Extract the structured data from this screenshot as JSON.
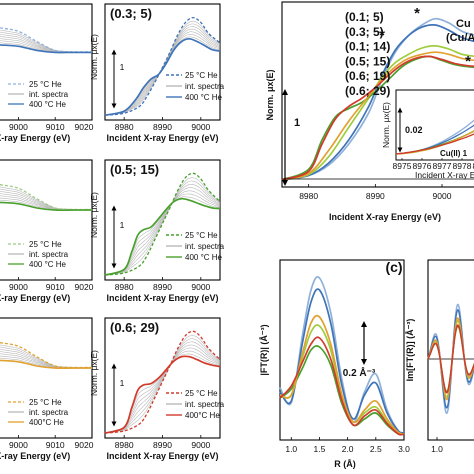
{
  "figure": {
    "colors": {
      "blue": "#3f74b8",
      "blue_light": "#8fb0da",
      "green": "#49a12d",
      "green_light": "#9ccc85",
      "orange": "#e1a12f",
      "red": "#d23a2c",
      "gray": "#b8b8b8",
      "lightgreen": "#9fcd3f",
      "darkblue": "#2f3f7d"
    },
    "common": {
      "x_axis_label": "Incident X-ray Energy (eV)",
      "x_axis_label_partial": "t X-ray Energy (eV)",
      "y_axis_label": "Norm. μx(E)",
      "scale_bar": "1",
      "legend": [
        "25 °C He",
        "int. spectra",
        "400 °C He"
      ],
      "legend_red": [
        "25 °C He",
        "int. spectra",
        "400°C He"
      ]
    },
    "small_panels": {
      "left_ticks": [
        "9000",
        "9010",
        "9020"
      ],
      "zoom_ticks": [
        "8980",
        "8990",
        "9000"
      ],
      "panels": [
        {
          "condition": "(0.3; 5)",
          "color_key": "blue"
        },
        {
          "condition": "(0.5; 15)",
          "color_key": "green"
        },
        {
          "condition": "(0.6; 29)",
          "color_key": "red"
        }
      ],
      "left_orange_legend": [
        "25 °C He",
        "int. spectra",
        "400°C He"
      ]
    },
    "main_panel": {
      "legend": [
        "(0.1; 5)",
        "(0.3; 5)",
        "(0.1; 14)",
        "(0.5; 15)",
        "(0.6; 19)",
        "(0.6; 29)"
      ],
      "legend_colors": [
        "#8fb0da",
        "#3f74b8",
        "#9fcd3f",
        "#49a12d",
        "#e1a12f",
        "#d23a2c"
      ],
      "title_partial": [
        "Cu",
        "(Cu/A"
      ],
      "x_ticks": [
        "8980",
        "8990",
        "9000"
      ],
      "star": "*",
      "inset": {
        "scale": "0.02",
        "label": "Cu(II) 1",
        "x_ticks": [
          "8975",
          "8976",
          "8977",
          "8978",
          "8979"
        ],
        "x_axis_label": "Incident X-ray En",
        "y_axis_label": "Norm. μx(E)"
      }
    },
    "panel_c": {
      "tag": "(c)",
      "ylabel_mag": "|FT(R)| (Å⁻³)",
      "ylabel_im": "Im[FT(R)] (Å⁻³)",
      "scale": "0.2 Å⁻³",
      "x_ticks": [
        "1.0",
        "1.5",
        "2.0",
        "2.5",
        "3.0"
      ],
      "x_ticks_im": [
        "1.0"
      ],
      "xlabel": "R (Å)"
    }
  },
  "chart_data": [
    {
      "type": "line",
      "title": "(0.3; 5)",
      "xlabel": "Incident X-ray Energy (eV)",
      "ylabel": "Norm. μx(E)",
      "xlim": [
        8975,
        9005
      ],
      "series": [
        {
          "name": "25 °C He",
          "x": [
            8975,
            8980,
            8984,
            8986,
            8988,
            8990,
            8992,
            8994,
            8996,
            8998,
            9000,
            9002,
            9005
          ],
          "y": [
            0.02,
            0.05,
            0.15,
            0.3,
            0.5,
            0.72,
            0.95,
            1.2,
            1.38,
            1.45,
            1.38,
            1.22,
            1.08
          ]
        },
        {
          "name": "400 °C He",
          "x": [
            8975,
            8980,
            8983,
            8985,
            8987,
            8989,
            8991,
            8993,
            8995,
            8997,
            8999,
            9001,
            9003,
            9005
          ],
          "y": [
            0.02,
            0.08,
            0.25,
            0.42,
            0.55,
            0.62,
            0.78,
            0.98,
            1.1,
            1.14,
            1.1,
            1.04,
            0.98,
            0.96
          ]
        }
      ]
    },
    {
      "type": "line",
      "title": "(0.5; 15)",
      "xlabel": "Incident X-ray Energy (eV)",
      "ylabel": "Norm. μx(E)",
      "xlim": [
        8975,
        9005
      ],
      "series": [
        {
          "name": "25 °C He",
          "x": [
            8975,
            8980,
            8984,
            8986,
            8988,
            8990,
            8992,
            8994,
            8996,
            8998,
            9000,
            9002,
            9005
          ],
          "y": [
            0.02,
            0.05,
            0.15,
            0.3,
            0.52,
            0.75,
            0.98,
            1.22,
            1.4,
            1.46,
            1.38,
            1.22,
            1.06
          ]
        },
        {
          "name": "400 °C He",
          "x": [
            8975,
            8980,
            8982,
            8983.5,
            8985,
            8987,
            8989,
            8991,
            8993,
            8995,
            8997,
            8999,
            9001,
            9003,
            9005
          ],
          "y": [
            0.02,
            0.1,
            0.35,
            0.58,
            0.66,
            0.7,
            0.82,
            0.95,
            1.06,
            1.1,
            1.08,
            1.04,
            1.0,
            0.97,
            0.96
          ]
        }
      ]
    },
    {
      "type": "line",
      "title": "(0.6; 29)",
      "xlabel": "Incident X-ray Energy (eV)",
      "ylabel": "Norm. μx(E)",
      "xlim": [
        8975,
        9005
      ],
      "series": [
        {
          "name": "25 °C He",
          "x": [
            8975,
            8980,
            8984,
            8986,
            8988,
            8990,
            8992,
            8994,
            8996,
            8998,
            9000,
            9002,
            9005
          ],
          "y": [
            0.02,
            0.05,
            0.15,
            0.3,
            0.52,
            0.75,
            0.98,
            1.22,
            1.4,
            1.46,
            1.38,
            1.22,
            1.06
          ]
        },
        {
          "name": "400°C He",
          "x": [
            8975,
            8980,
            8982,
            8983.5,
            8985,
            8987,
            8989,
            8991,
            8993,
            8995,
            8997,
            8999,
            9001,
            9003,
            9005
          ],
          "y": [
            0.02,
            0.1,
            0.38,
            0.62,
            0.7,
            0.72,
            0.8,
            0.92,
            1.04,
            1.1,
            1.1,
            1.06,
            1.01,
            0.98,
            0.96
          ]
        }
      ]
    },
    {
      "type": "line",
      "xlabel": "Incident X-ray Energy (eV)",
      "ylabel": "Norm. μx(E)",
      "xlim": [
        8976,
        9006
      ],
      "series": [
        {
          "name": "(0.1; 5)",
          "x": [
            8976,
            8980,
            8983,
            8986,
            8989,
            8991,
            8993,
            8995,
            8997,
            8999,
            9001,
            9003,
            9005,
            9006
          ],
          "y": [
            0.02,
            0.06,
            0.16,
            0.36,
            0.66,
            0.98,
            1.24,
            1.4,
            1.5,
            1.56,
            1.52,
            1.44,
            1.4,
            1.38
          ]
        },
        {
          "name": "(0.3; 5)",
          "x": [
            8976,
            8980,
            8983,
            8986,
            8989,
            8991,
            8993,
            8995,
            8997,
            8999,
            9001,
            9003,
            9005,
            9006
          ],
          "y": [
            0.02,
            0.06,
            0.18,
            0.4,
            0.72,
            1.02,
            1.26,
            1.4,
            1.48,
            1.5,
            1.45,
            1.38,
            1.34,
            1.33
          ]
        },
        {
          "name": "(0.1; 14)",
          "x": [
            8976,
            8980,
            8983,
            8986,
            8989,
            8991,
            8993,
            8995,
            8997,
            8999,
            9001,
            9003,
            9005,
            9006
          ],
          "y": [
            0.02,
            0.07,
            0.24,
            0.52,
            0.8,
            1.0,
            1.14,
            1.22,
            1.28,
            1.3,
            1.27,
            1.22,
            1.2,
            1.19
          ]
        },
        {
          "name": "(0.5; 15)",
          "x": [
            8976,
            8980,
            8982,
            8984,
            8986,
            8988,
            8990,
            8992,
            8994,
            8996,
            8998,
            9000,
            9002,
            9004,
            9006
          ],
          "y": [
            0.02,
            0.12,
            0.4,
            0.62,
            0.7,
            0.76,
            0.86,
            0.98,
            1.1,
            1.17,
            1.2,
            1.16,
            1.12,
            1.1,
            1.09
          ]
        },
        {
          "name": "(0.6; 19)",
          "x": [
            8976,
            8980,
            8983,
            8986,
            8989,
            8991,
            8993,
            8995,
            8997,
            8999,
            9001,
            9003,
            9005,
            9006
          ],
          "y": [
            0.02,
            0.08,
            0.3,
            0.58,
            0.82,
            0.98,
            1.1,
            1.18,
            1.22,
            1.24,
            1.22,
            1.18,
            1.16,
            1.15
          ]
        },
        {
          "name": "(0.6; 29)",
          "x": [
            8976,
            8980,
            8982,
            8984,
            8986,
            8988,
            8990,
            8992,
            8994,
            8996,
            8998,
            9000,
            9002,
            9004,
            9006
          ],
          "y": [
            0.02,
            0.1,
            0.36,
            0.6,
            0.72,
            0.8,
            0.9,
            1.02,
            1.12,
            1.18,
            1.2,
            1.17,
            1.13,
            1.11,
            1.1
          ]
        }
      ]
    },
    {
      "type": "line",
      "xlabel": "R (Å)",
      "ylabel": "|FT(R)| (Å⁻³)",
      "xlim": [
        0.8,
        3.0
      ],
      "series": [
        {
          "name": "(0.1; 5)",
          "x": [
            0.8,
            1.0,
            1.2,
            1.35,
            1.5,
            1.7,
            1.9,
            2.1,
            2.3,
            2.5,
            2.7,
            2.9,
            3.0
          ],
          "y": [
            0.35,
            0.25,
            0.7,
            1.0,
            1.08,
            0.85,
            0.4,
            0.12,
            0.32,
            0.44,
            0.2,
            0.06,
            0.05
          ]
        },
        {
          "name": "(0.3; 5)",
          "x": [
            0.8,
            1.0,
            1.2,
            1.35,
            1.5,
            1.7,
            1.9,
            2.1,
            2.3,
            2.5,
            2.7,
            2.9,
            3.0
          ],
          "y": [
            0.32,
            0.26,
            0.65,
            0.92,
            1.0,
            0.78,
            0.36,
            0.14,
            0.3,
            0.38,
            0.18,
            0.06,
            0.05
          ]
        },
        {
          "name": "(0.1; 14)",
          "x": [
            0.8,
            1.0,
            1.2,
            1.35,
            1.5,
            1.7,
            1.9,
            2.1,
            2.3,
            2.5,
            2.7,
            2.9,
            3.0
          ],
          "y": [
            0.3,
            0.3,
            0.55,
            0.72,
            0.76,
            0.6,
            0.28,
            0.12,
            0.18,
            0.22,
            0.12,
            0.05,
            0.04
          ]
        },
        {
          "name": "(0.5; 15)",
          "x": [
            0.8,
            1.0,
            1.2,
            1.35,
            1.5,
            1.7,
            1.9,
            2.1,
            2.3,
            2.5,
            2.7,
            2.9,
            3.0
          ],
          "y": [
            0.28,
            0.34,
            0.48,
            0.6,
            0.62,
            0.5,
            0.24,
            0.1,
            0.14,
            0.18,
            0.1,
            0.04,
            0.04
          ]
        },
        {
          "name": "(0.6; 19)",
          "x": [
            0.8,
            1.0,
            1.2,
            1.35,
            1.5,
            1.7,
            1.9,
            2.1,
            2.3,
            2.5,
            2.7,
            2.9,
            3.0
          ],
          "y": [
            0.3,
            0.3,
            0.58,
            0.78,
            0.82,
            0.64,
            0.3,
            0.12,
            0.2,
            0.26,
            0.14,
            0.05,
            0.04
          ]
        },
        {
          "name": "(0.6; 29)",
          "x": [
            0.8,
            1.0,
            1.2,
            1.35,
            1.5,
            1.7,
            1.9,
            2.1,
            2.3,
            2.5,
            2.7,
            2.9,
            3.0
          ],
          "y": [
            0.28,
            0.36,
            0.52,
            0.64,
            0.68,
            0.54,
            0.26,
            0.1,
            0.16,
            0.2,
            0.11,
            0.04,
            0.04
          ]
        }
      ]
    }
  ]
}
